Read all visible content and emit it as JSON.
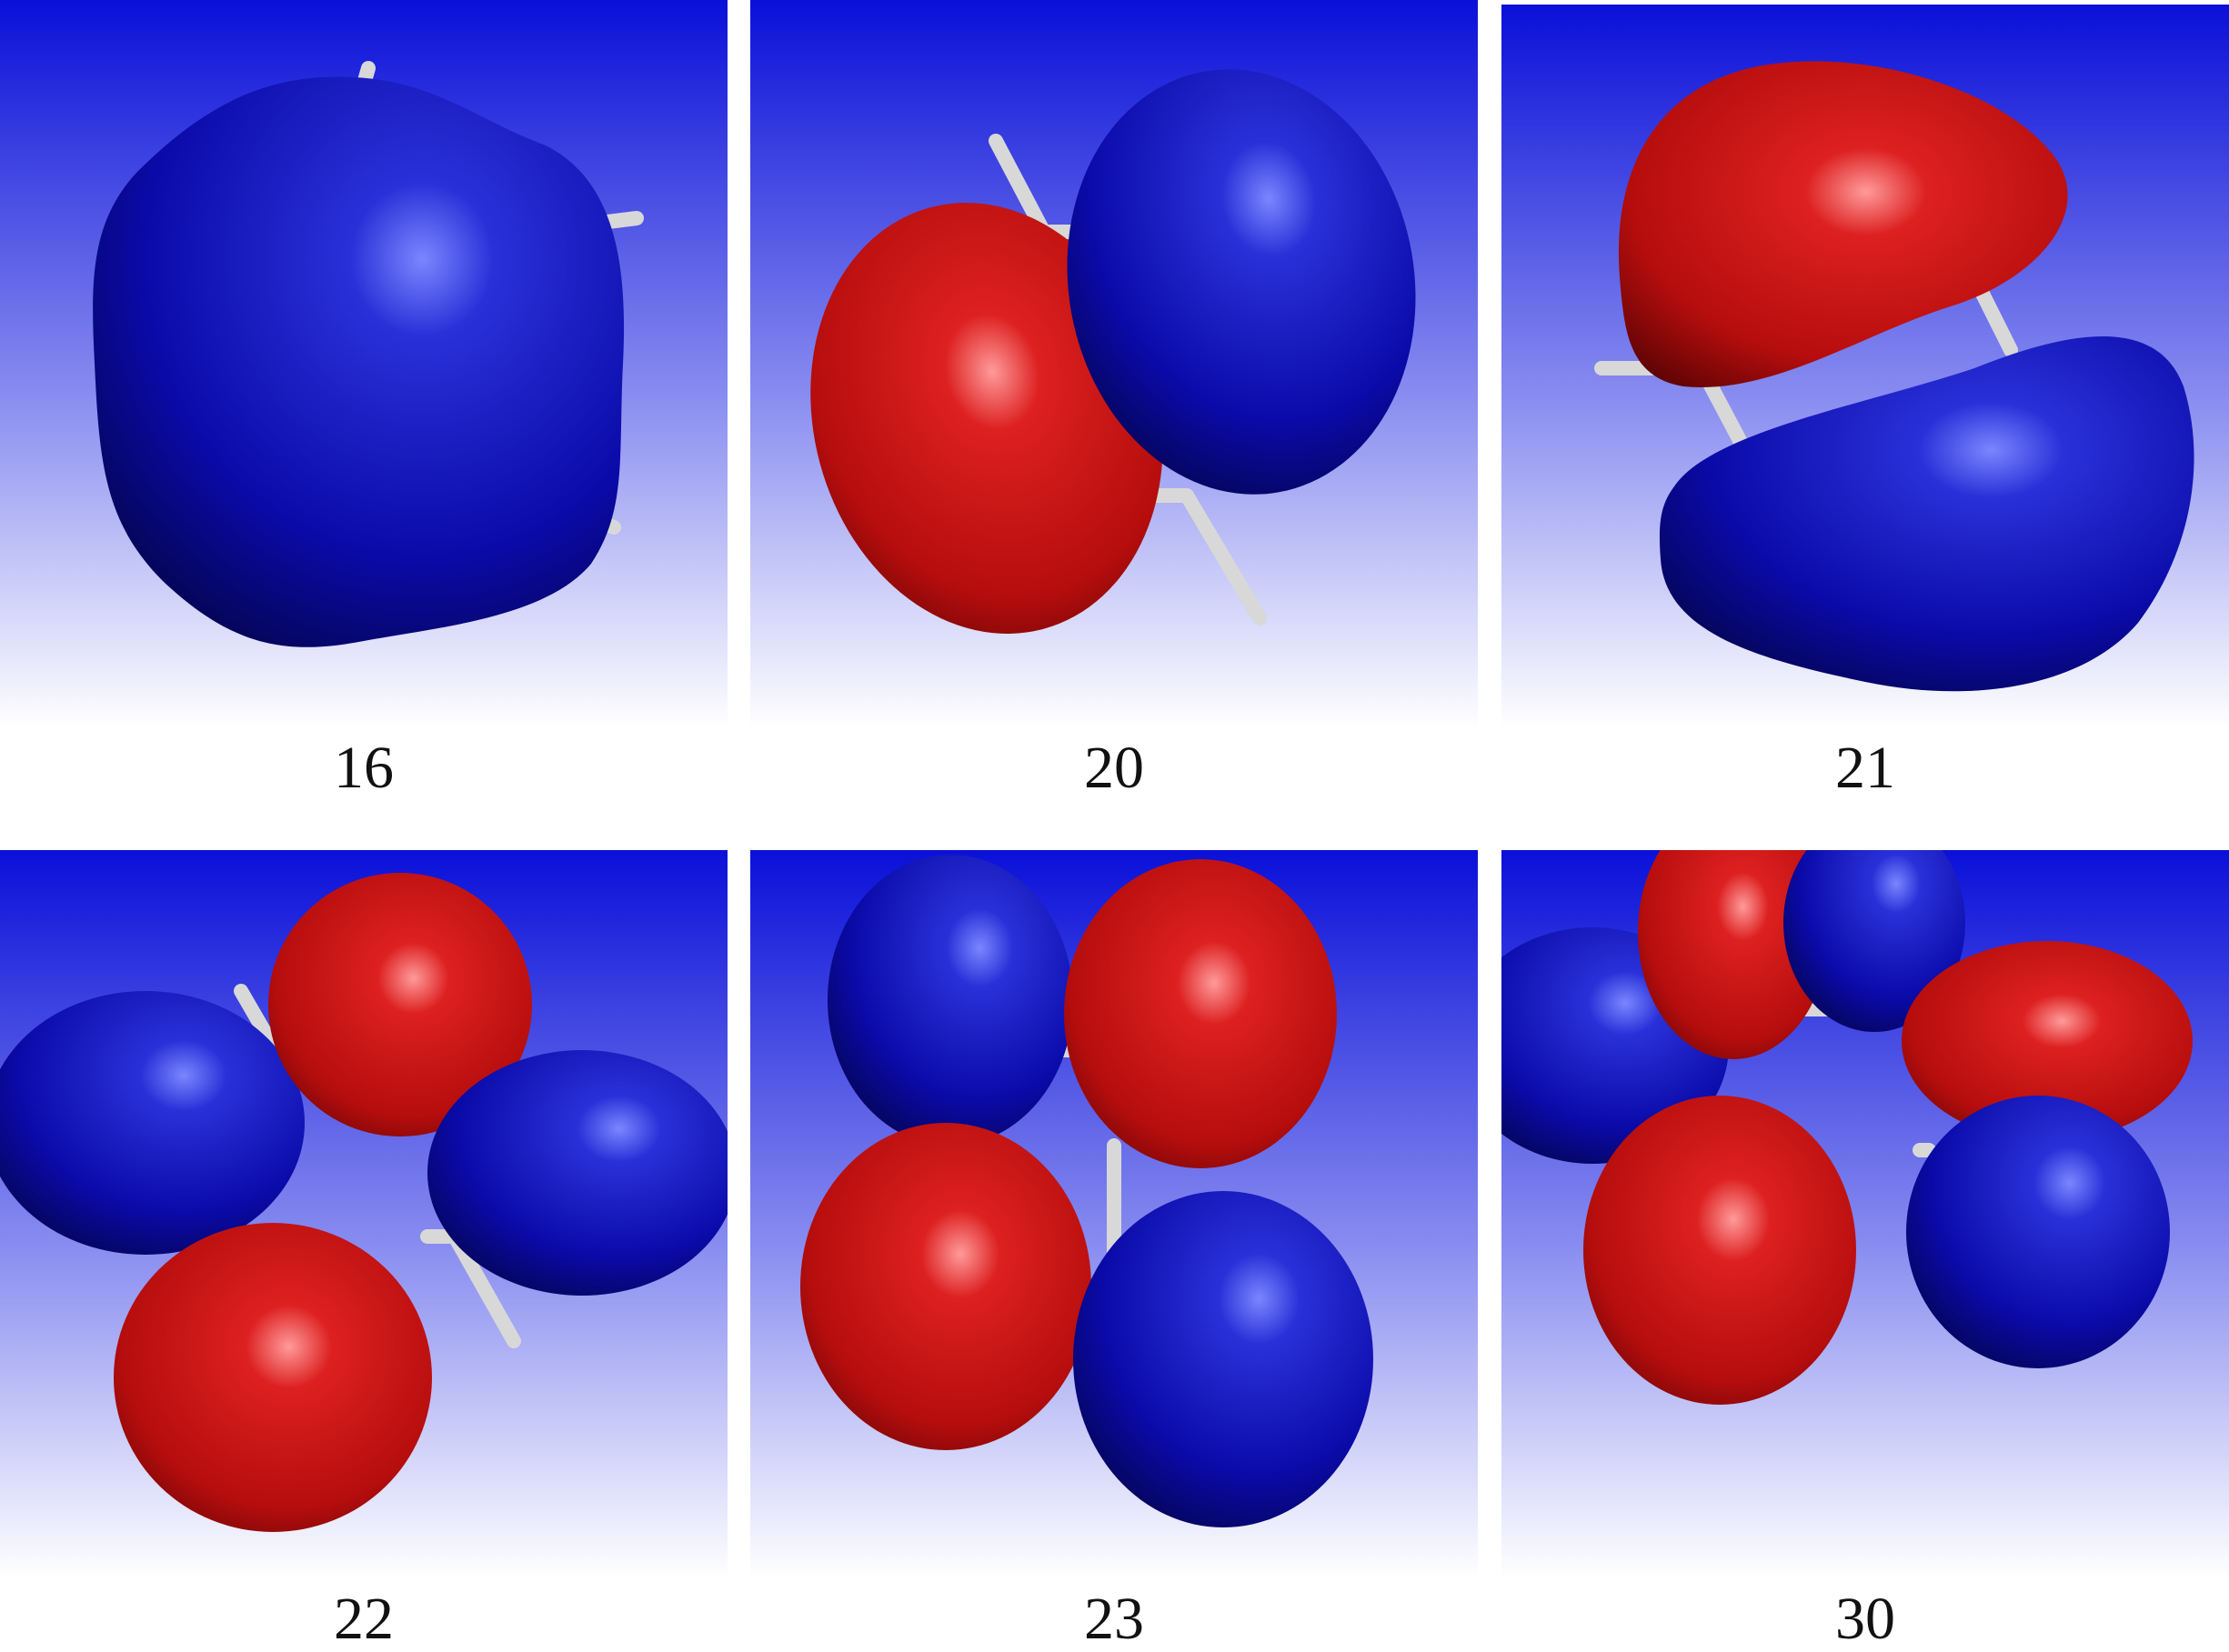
{
  "panels": [
    {
      "label": "16"
    },
    {
      "label": "20"
    },
    {
      "label": "21"
    },
    {
      "label": "22"
    },
    {
      "label": "23"
    },
    {
      "label": "30"
    }
  ],
  "colors": {
    "background_top": "#0a10d8",
    "background_bottom": "#ffffff",
    "positive_lobe": "#cc1111",
    "negative_lobe": "#0a0aa8",
    "bond": "#d8d8d8"
  }
}
